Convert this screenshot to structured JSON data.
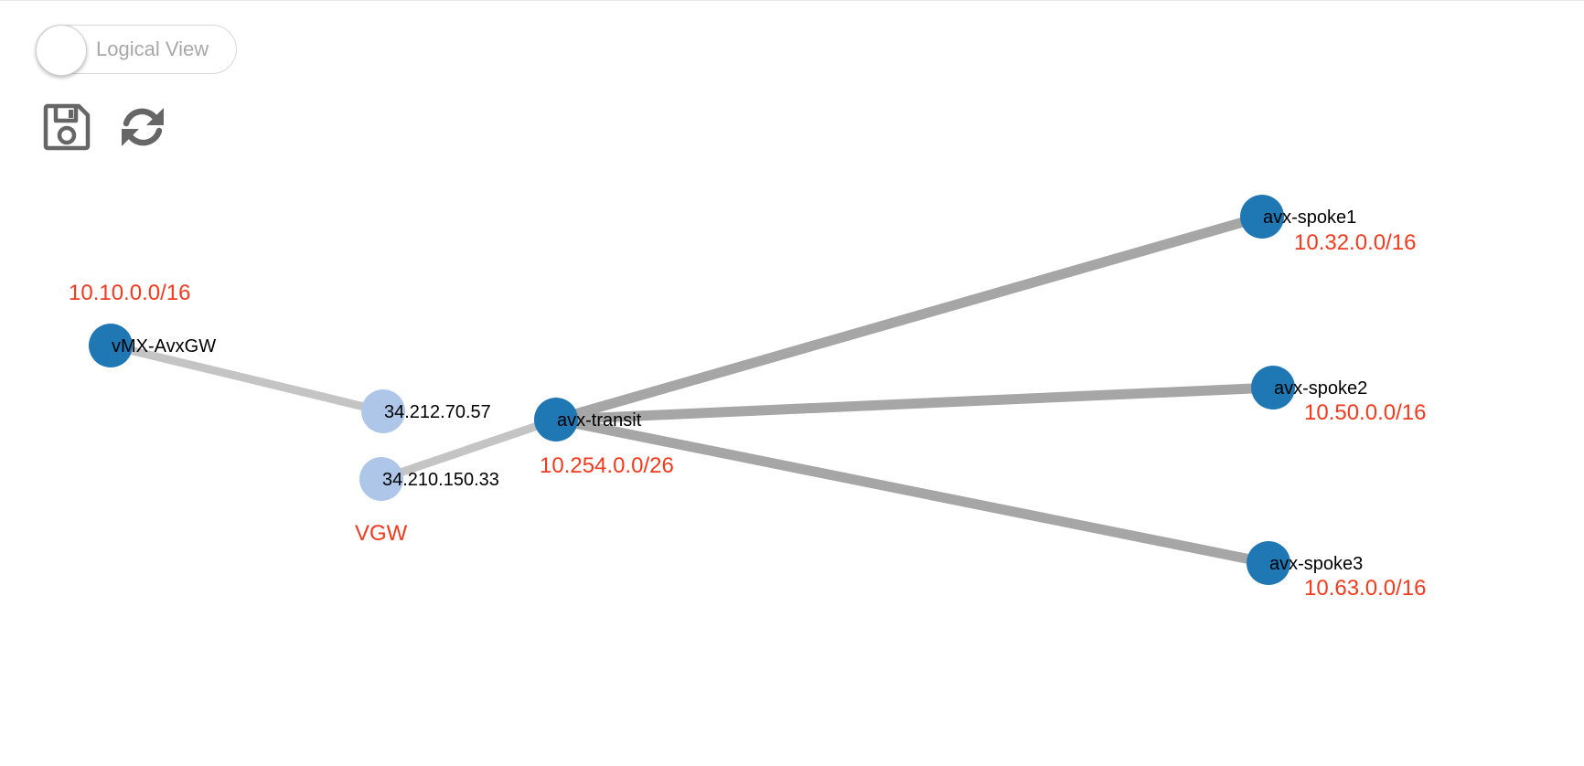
{
  "toggle": {
    "label": "Logical View",
    "state": "off"
  },
  "toolbar": {
    "save_icon": "save-icon",
    "refresh_icon": "refresh-icon"
  },
  "colors": {
    "gateway": "#1f77b4",
    "endpoint": "#aec7e8",
    "link_dark": "#a6a6a6",
    "link_light": "#c4c4c4",
    "subnet": "#f23a1e",
    "icon": "#666666"
  },
  "nodes": [
    {
      "id": "vmx",
      "name": "vMX-AvxGW",
      "kind": "gateway",
      "cidr": "10.10.0.0/16"
    },
    {
      "id": "ip1",
      "name": "34.212.70.57",
      "kind": "endpoint",
      "cidr": ""
    },
    {
      "id": "ip2",
      "name": "34.210.150.33",
      "kind": "endpoint",
      "cidr": ""
    },
    {
      "id": "transit",
      "name": "avx-transit",
      "kind": "gateway",
      "cidr": "10.254.0.0/26"
    },
    {
      "id": "spoke1",
      "name": "avx-spoke1",
      "kind": "gateway",
      "cidr": "10.32.0.0/16"
    },
    {
      "id": "spoke2",
      "name": "avx-spoke2",
      "kind": "gateway",
      "cidr": "10.50.0.0/16"
    },
    {
      "id": "spoke3",
      "name": "avx-spoke3",
      "kind": "gateway",
      "cidr": "10.63.0.0/16"
    }
  ],
  "group_labels": [
    {
      "id": "vgw",
      "text": "VGW"
    }
  ],
  "links": [
    {
      "source": "vmx",
      "target": "ip1",
      "style": "light"
    },
    {
      "source": "ip2",
      "target": "transit",
      "style": "light"
    },
    {
      "source": "transit",
      "target": "spoke1",
      "style": "dark"
    },
    {
      "source": "transit",
      "target": "spoke2",
      "style": "dark"
    },
    {
      "source": "transit",
      "target": "spoke3",
      "style": "dark"
    }
  ]
}
